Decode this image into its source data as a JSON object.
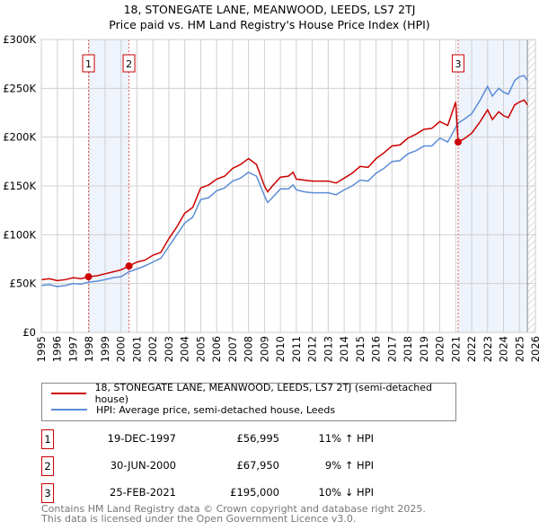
{
  "chart_data": {
    "type": "line",
    "title": "18, STONEGATE LANE, MEANWOOD, LEEDS, LS7 2TJ",
    "subtitle": "Price paid vs. HM Land Registry's House Price Index (HPI)",
    "xlim": [
      1995,
      2026
    ],
    "ylim": [
      0,
      300000
    ],
    "yticks": [
      {
        "v": 0,
        "label": "£0"
      },
      {
        "v": 50000,
        "label": "£50K"
      },
      {
        "v": 100000,
        "label": "£100K"
      },
      {
        "v": 150000,
        "label": "£150K"
      },
      {
        "v": 200000,
        "label": "£200K"
      },
      {
        "v": 250000,
        "label": "£250K"
      },
      {
        "v": 300000,
        "label": "£300K"
      }
    ],
    "xticks": [
      "1995",
      "1996",
      "1997",
      "1998",
      "1999",
      "2000",
      "2001",
      "2002",
      "2003",
      "2004",
      "2005",
      "2006",
      "2007",
      "2008",
      "2009",
      "2010",
      "2011",
      "2012",
      "2013",
      "2014",
      "2015",
      "2016",
      "2017",
      "2018",
      "2019",
      "2020",
      "2021",
      "2022",
      "2023",
      "2024",
      "2025",
      "2026"
    ],
    "grid": true,
    "shaded_ranges": [
      [
        1997.96,
        2000.5
      ],
      [
        2021.15,
        2025.5
      ]
    ],
    "forecast_hatch_from": 2025.5,
    "series": [
      {
        "name": "18, STONEGATE LANE, MEANWOOD, LEEDS, LS7 2TJ (semi-detached house)",
        "color": "#cc0000",
        "x": [
          1995,
          1995.5,
          1996,
          1996.5,
          1997,
          1997.5,
          1997.96,
          1998.5,
          1999,
          1999.5,
          2000,
          2000.5,
          2001,
          2001.5,
          2002,
          2002.5,
          2003,
          2003.5,
          2004,
          2004.5,
          2005,
          2005.5,
          2006,
          2006.5,
          2007,
          2007.5,
          2008,
          2008.5,
          2009,
          2009.2,
          2009.5,
          2010,
          2010.5,
          2010.8,
          2011,
          2011.5,
          2012,
          2012.5,
          2013,
          2013.5,
          2014,
          2014.5,
          2015,
          2015.5,
          2016,
          2016.5,
          2017,
          2017.5,
          2018,
          2018.5,
          2019,
          2019.5,
          2020,
          2020.5,
          2021,
          2021.15,
          2021.5,
          2022,
          2022.5,
          2023,
          2023.3,
          2023.7,
          2024,
          2024.3,
          2024.7,
          2025,
          2025.3,
          2025.5
        ],
        "y": [
          54000,
          55000,
          53000,
          54000,
          56000,
          55000,
          57000,
          58000,
          60000,
          62000,
          64000,
          68000,
          72000,
          74000,
          79000,
          82000,
          96000,
          108000,
          122000,
          128000,
          148000,
          151000,
          157000,
          160000,
          168000,
          172000,
          178000,
          172000,
          150000,
          144000,
          150000,
          159000,
          160000,
          164000,
          157000,
          156000,
          155000,
          155000,
          155000,
          153000,
          158000,
          163000,
          170000,
          169000,
          178000,
          184000,
          191000,
          192000,
          199000,
          203000,
          208000,
          209000,
          216000,
          212000,
          236000,
          195000,
          198000,
          204000,
          215000,
          228000,
          218000,
          226000,
          222000,
          220000,
          233000,
          236000,
          238000,
          233000
        ]
      },
      {
        "name": "HPI: Average price, semi-detached house, Leeds",
        "color": "#5b8dd6",
        "x": [
          1995,
          1995.5,
          1996,
          1996.5,
          1997,
          1997.5,
          1998,
          1998.5,
          1999,
          1999.5,
          2000,
          2000.5,
          2001,
          2001.5,
          2002,
          2002.5,
          2003,
          2003.5,
          2004,
          2004.5,
          2005,
          2005.5,
          2006,
          2006.5,
          2007,
          2007.5,
          2008,
          2008.5,
          2009,
          2009.2,
          2009.5,
          2010,
          2010.5,
          2010.8,
          2011,
          2011.5,
          2012,
          2012.5,
          2013,
          2013.5,
          2014,
          2014.5,
          2015,
          2015.5,
          2016,
          2016.5,
          2017,
          2017.5,
          2018,
          2018.5,
          2019,
          2019.5,
          2020,
          2020.5,
          2021,
          2021.2,
          2021.5,
          2022,
          2022.5,
          2023,
          2023.3,
          2023.7,
          2024,
          2024.3,
          2024.7,
          2025,
          2025.3,
          2025.5
        ],
        "y": [
          48000,
          49000,
          47000,
          48000,
          50000,
          49500,
          51500,
          52500,
          54000,
          56000,
          57000,
          62000,
          65000,
          68000,
          72000,
          76000,
          88000,
          100000,
          112000,
          118000,
          136000,
          138000,
          145000,
          148000,
          155000,
          158000,
          164000,
          160000,
          140000,
          133000,
          138000,
          147000,
          147000,
          151000,
          146000,
          144000,
          143000,
          143000,
          143000,
          141000,
          146000,
          150000,
          156000,
          155000,
          163000,
          168000,
          175000,
          176000,
          183000,
          186000,
          191000,
          191000,
          199000,
          195000,
          210000,
          215000,
          218000,
          224000,
          237000,
          252000,
          242000,
          250000,
          246000,
          244000,
          258000,
          262000,
          263000,
          258000
        ]
      }
    ],
    "sales": [
      {
        "n": "1",
        "x": 1997.96,
        "y": 56995,
        "date": "19-DEC-1997",
        "price": "£56,995",
        "hpi": "11% ↑ HPI"
      },
      {
        "n": "2",
        "x": 2000.5,
        "y": 67950,
        "date": "30-JUN-2000",
        "price": "£67,950",
        "hpi": "9% ↑ HPI"
      },
      {
        "n": "3",
        "x": 2021.15,
        "y": 195000,
        "date": "25-FEB-2021",
        "price": "£195,000",
        "hpi": "10% ↓ HPI"
      }
    ]
  },
  "footer": {
    "line1": "Contains HM Land Registry data © Crown copyright and database right 2025.",
    "line2": "This data is licensed under the Open Government Licence v3.0."
  }
}
